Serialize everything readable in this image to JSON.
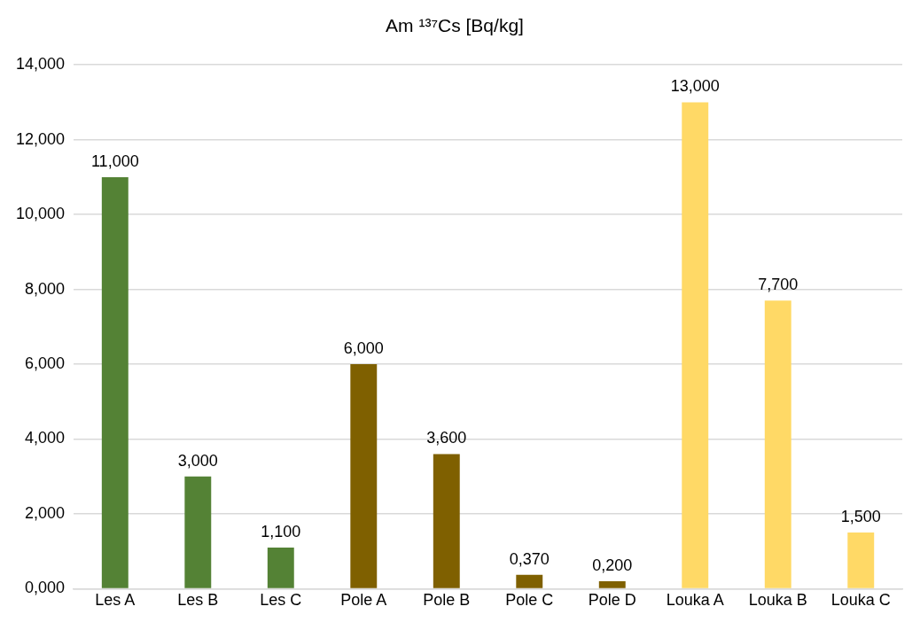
{
  "chart_data": {
    "type": "bar",
    "title": "Am ¹³⁷Cs [Bq/kg]",
    "categories": [
      "Les A",
      "Les B",
      "Les C",
      "Pole A",
      "Pole B",
      "Pole C",
      "Pole D",
      "Louka A",
      "Louka B",
      "Louka C"
    ],
    "values": [
      11,
      3,
      1.1,
      6,
      3.6,
      0.37,
      0.2,
      13,
      7.7,
      1.5
    ],
    "colors": [
      "#548235",
      "#548235",
      "#548235",
      "#7f6000",
      "#7f6000",
      "#7f6000",
      "#7f6000",
      "#ffd966",
      "#ffd966",
      "#ffd966"
    ],
    "value_labels": [
      "11,000",
      "3,000",
      "1,100",
      "6,000",
      "3,600",
      "0,370",
      "0,200",
      "13,000",
      "7,700",
      "1,500"
    ],
    "ylim": [
      0,
      14
    ],
    "yticks": [
      {
        "value": 0,
        "label": "0,000"
      },
      {
        "value": 2,
        "label": "2,000"
      },
      {
        "value": 4,
        "label": "4,000"
      },
      {
        "value": 6,
        "label": "6,000"
      },
      {
        "value": 8,
        "label": "8,000"
      },
      {
        "value": 10,
        "label": "10,000"
      },
      {
        "value": 12,
        "label": "12,000"
      },
      {
        "value": 14,
        "label": "14,000"
      }
    ],
    "grid": "y",
    "legend": false
  }
}
